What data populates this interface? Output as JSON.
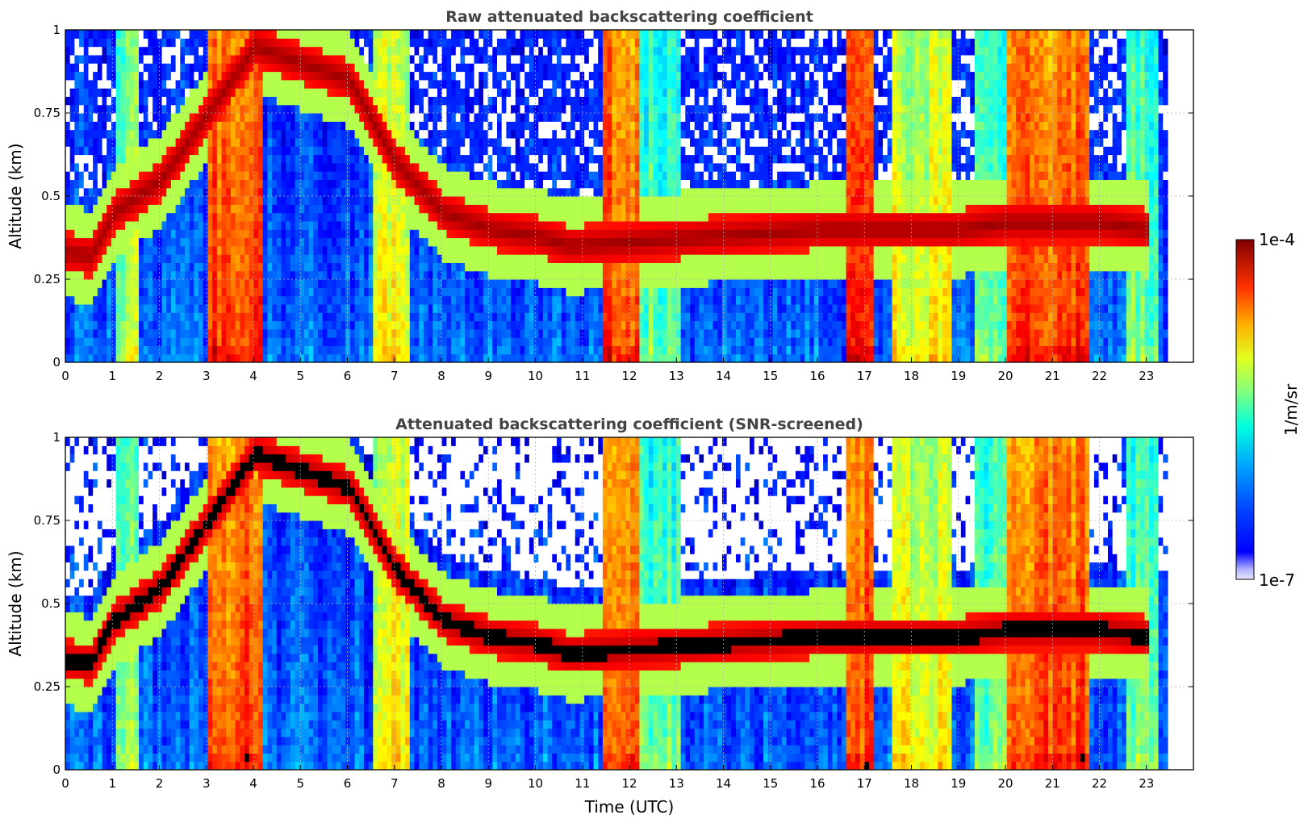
{
  "chart_data": [
    {
      "type": "heatmap",
      "title": "Raw attenuated backscattering coefficient",
      "xlabel": "",
      "ylabel": "Altitude (km)",
      "xlim": [
        0,
        24
      ],
      "ylim": [
        0,
        1
      ],
      "x_ticks": [
        "0",
        "1",
        "2",
        "3",
        "4",
        "5",
        "6",
        "7",
        "8",
        "9",
        "10",
        "11",
        "12",
        "13",
        "14",
        "15",
        "16",
        "17",
        "18",
        "19",
        "20",
        "21",
        "22",
        "23"
      ],
      "y_ticks": [
        "0",
        "0.25",
        "0.5",
        "0.75",
        "1"
      ],
      "data_extent_hours": [
        0,
        23.45
      ],
      "grid": true,
      "layer_altitude_km": [
        [
          0,
          0.33
        ],
        [
          0.5,
          0.32
        ],
        [
          1,
          0.45
        ],
        [
          2,
          0.55
        ],
        [
          3,
          0.75
        ],
        [
          4,
          0.95
        ],
        [
          5,
          0.9
        ],
        [
          6,
          0.85
        ],
        [
          7,
          0.6
        ],
        [
          8,
          0.45
        ],
        [
          9,
          0.4
        ],
        [
          10,
          0.38
        ],
        [
          10.7,
          0.35
        ],
        [
          16,
          0.4
        ],
        [
          17,
          0.4
        ],
        [
          18,
          0.4
        ],
        [
          19,
          0.4
        ],
        [
          20,
          0.42
        ],
        [
          21,
          0.42
        ],
        [
          22,
          0.42
        ],
        [
          23,
          0.4
        ]
      ]
    },
    {
      "type": "heatmap",
      "title": "Attenuated backscattering coefficient (SNR-screened)",
      "xlabel": "Time (UTC)",
      "ylabel": "Altitude (km)",
      "xlim": [
        0,
        24
      ],
      "ylim": [
        0,
        1
      ],
      "x_ticks": [
        "0",
        "1",
        "2",
        "3",
        "4",
        "5",
        "6",
        "7",
        "8",
        "9",
        "10",
        "11",
        "12",
        "13",
        "14",
        "15",
        "16",
        "17",
        "18",
        "19",
        "20",
        "21",
        "22",
        "23"
      ],
      "y_ticks": [
        "0",
        "0.25",
        "0.5",
        "0.75",
        "1"
      ],
      "data_extent_hours": [
        0,
        23.45
      ],
      "grid": true,
      "saturated_color": "#000000"
    }
  ],
  "colorbar": {
    "min_label": "1e-7",
    "max_label": "1e-4",
    "label": "1/m/sr",
    "scale": "log",
    "colormap": "jet"
  }
}
